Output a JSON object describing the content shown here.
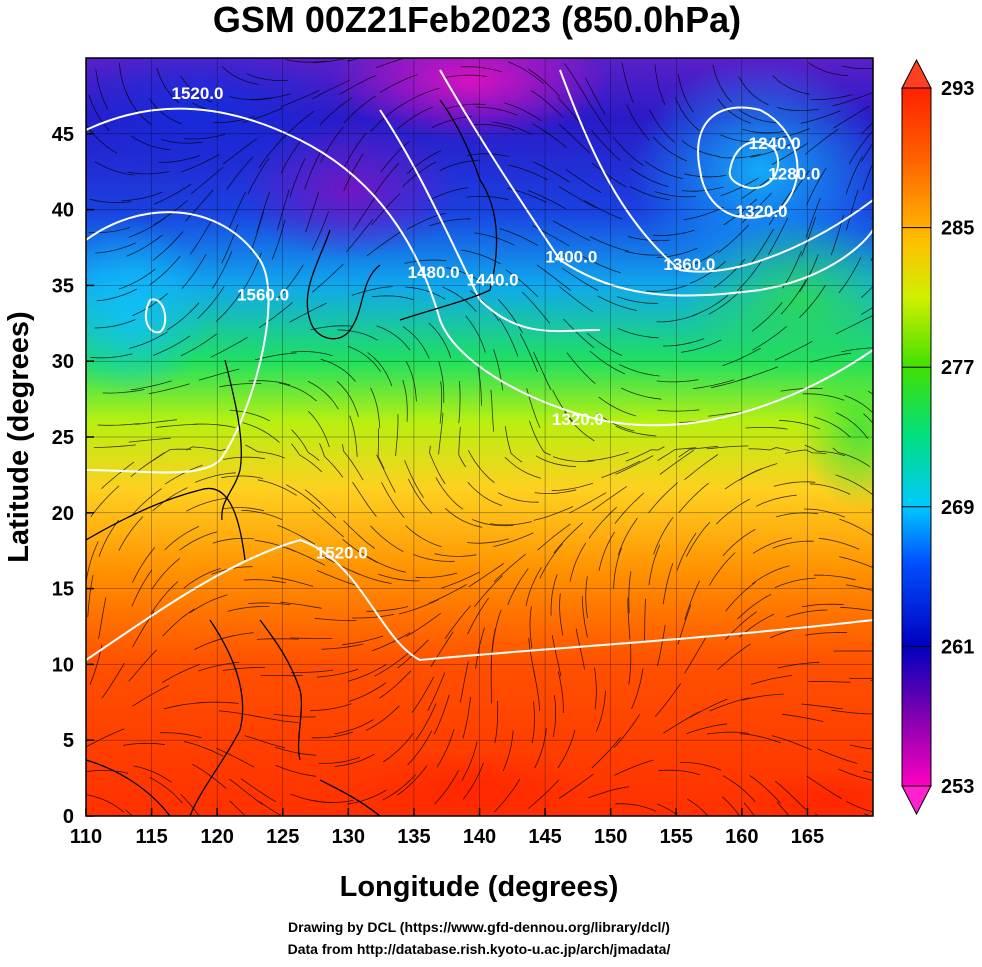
{
  "title": "GSM 00Z21Feb2023 (850.0hPa)",
  "x_axis": {
    "label": "Longitude (degrees)",
    "range": [
      110,
      170
    ],
    "ticks": [
      110,
      115,
      120,
      125,
      130,
      135,
      140,
      145,
      150,
      155,
      160,
      165
    ]
  },
  "y_axis": {
    "label": "Latitude  (degrees)",
    "range": [
      0,
      50
    ],
    "ticks": [
      0,
      5,
      10,
      15,
      20,
      25,
      30,
      35,
      40,
      45
    ]
  },
  "colorbar": {
    "range": [
      253,
      293
    ],
    "ticks": [
      293,
      285,
      277,
      269,
      261,
      253
    ],
    "colors": [
      "#ff00c0",
      "#8000b0",
      "#0000c0",
      "#0050ff",
      "#00c8ff",
      "#00e080",
      "#40e000",
      "#d0f000",
      "#ffc000",
      "#ff6000",
      "#ff2000"
    ]
  },
  "contours": [
    {
      "label": "1520.0",
      "lon": 118.5,
      "lat": 47.3
    },
    {
      "label": "1560.0",
      "lon": 123.5,
      "lat": 34.0
    },
    {
      "label": "1480.0",
      "lon": 136.5,
      "lat": 35.5
    },
    {
      "label": "1440.0",
      "lon": 141.0,
      "lat": 35.0
    },
    {
      "label": "1400.0",
      "lon": 147.0,
      "lat": 36.5
    },
    {
      "label": "1360.0",
      "lon": 156.0,
      "lat": 36.0
    },
    {
      "label": "1320.0",
      "lon": 161.5,
      "lat": 39.5
    },
    {
      "label": "1280.0",
      "lon": 164.0,
      "lat": 42.0
    },
    {
      "label": "1240.0",
      "lon": 162.5,
      "lat": 44.0
    },
    {
      "label": "1320.0",
      "lon": 147.5,
      "lat": 25.8
    },
    {
      "label": "1520.0",
      "lon": 129.5,
      "lat": 17.0
    }
  ],
  "credits": [
    "Drawing by DCL (https://www.gfd-dennou.org/library/dcl/)",
    "Data from http://database.rish.kyoto-u.ac.jp/arch/jmadata/"
  ]
}
